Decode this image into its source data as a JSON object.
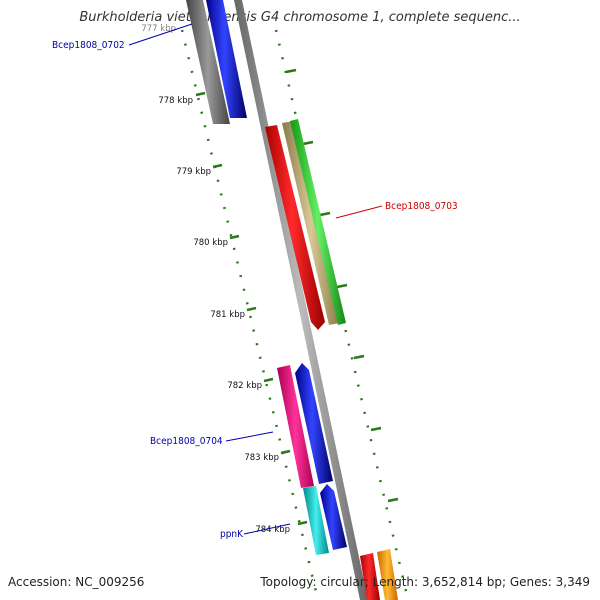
{
  "title": "Burkholderia vietnamiensis G4 chromosome 1, complete sequenc...",
  "footer": {
    "accession": "Accession: NC_009256",
    "topology": "Topology: circular; Length: 3,652,814 bp; Genes: 3,349"
  },
  "ticks": [
    {
      "label": "777 kbp",
      "kbp": 777
    },
    {
      "label": "778 kbp",
      "kbp": 778
    },
    {
      "label": "779 kbp",
      "kbp": 779
    },
    {
      "label": "780 kbp",
      "kbp": 780
    },
    {
      "label": "781 kbp",
      "kbp": 781
    },
    {
      "label": "782 kbp",
      "kbp": 782
    },
    {
      "label": "783 kbp",
      "kbp": 783
    },
    {
      "label": "784 kbp",
      "kbp": 784
    }
  ],
  "gene_labels": [
    {
      "name": "Bcep1808_0702",
      "color": "#0000aa"
    },
    {
      "name": "Bcep1808_0703",
      "color": "#cc0000"
    },
    {
      "name": "Bcep1808_0704",
      "color": "#0000aa"
    },
    {
      "name": "ppnK",
      "color": "#0000aa"
    }
  ],
  "colors": {
    "backbone": "#8a8a8a",
    "tick": "#2a7a1a",
    "cds_forward": "#0000ee",
    "cds_reverse": "#ff0000",
    "gene_dark": "#555555",
    "gene_tan": "#c4b47a",
    "gene_green": "#33cc33",
    "gene_pink": "#ee1177",
    "gene_cyan": "#11cccc",
    "gene_orange": "#ff9900"
  }
}
